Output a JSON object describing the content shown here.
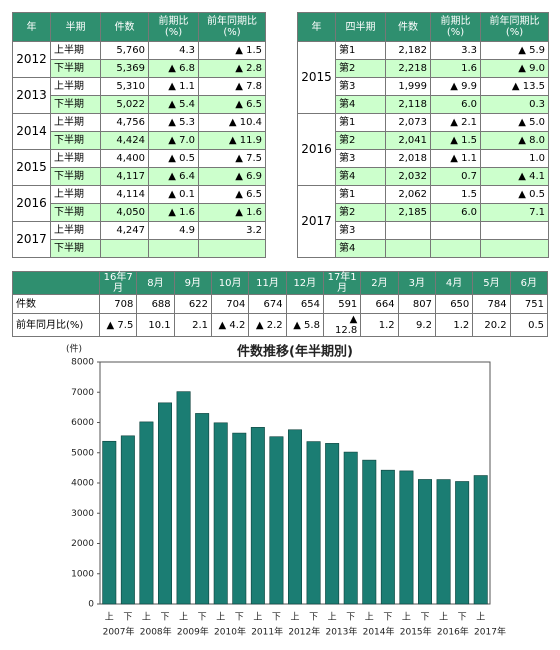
{
  "half_table": {
    "headers": [
      "年",
      "半期",
      "件数",
      "前期比\n(%)",
      "前年同期比\n(%)"
    ],
    "groups": [
      {
        "year": "2012",
        "rows": [
          [
            "上半期",
            "5,760",
            "4.3",
            "▲ 1.5"
          ],
          [
            "下半期",
            "5,369",
            "▲ 6.8",
            "▲ 2.8"
          ]
        ]
      },
      {
        "year": "2013",
        "rows": [
          [
            "上半期",
            "5,310",
            "▲ 1.1",
            "▲ 7.8"
          ],
          [
            "下半期",
            "5,022",
            "▲ 5.4",
            "▲ 6.5"
          ]
        ]
      },
      {
        "year": "2014",
        "rows": [
          [
            "上半期",
            "4,756",
            "▲ 5.3",
            "▲ 10.4"
          ],
          [
            "下半期",
            "4,424",
            "▲ 7.0",
            "▲ 11.9"
          ]
        ]
      },
      {
        "year": "2015",
        "rows": [
          [
            "上半期",
            "4,400",
            "▲ 0.5",
            "▲ 7.5"
          ],
          [
            "下半期",
            "4,117",
            "▲ 6.4",
            "▲ 6.9"
          ]
        ]
      },
      {
        "year": "2016",
        "rows": [
          [
            "上半期",
            "4,114",
            "▲ 0.1",
            "▲ 6.5"
          ],
          [
            "下半期",
            "4,050",
            "▲ 1.6",
            "▲ 1.6"
          ]
        ]
      },
      {
        "year": "2017",
        "rows": [
          [
            "上半期",
            "4,247",
            "4.9",
            "3.2"
          ],
          [
            "下半期"
          ]
        ]
      }
    ]
  },
  "quarter_table": {
    "headers": [
      "年",
      "四半期",
      "件数",
      "前期比\n(%)",
      "前年同期比\n(%)"
    ],
    "groups": [
      {
        "year": "2015",
        "rows": [
          [
            "第1",
            "2,182",
            "3.3",
            "▲ 5.9"
          ],
          [
            "第2",
            "2,218",
            "1.6",
            "▲ 9.0"
          ],
          [
            "第3",
            "1,999",
            "▲ 9.9",
            "▲ 13.5"
          ],
          [
            "第4",
            "2,118",
            "6.0",
            "0.3"
          ]
        ]
      },
      {
        "year": "2016",
        "rows": [
          [
            "第1",
            "2,073",
            "▲ 2.1",
            "▲ 5.0"
          ],
          [
            "第2",
            "2,041",
            "▲ 1.5",
            "▲ 8.0"
          ],
          [
            "第3",
            "2,018",
            "▲ 1.1",
            "1.0"
          ],
          [
            "第4",
            "2,032",
            "0.7",
            "▲ 4.1"
          ]
        ]
      },
      {
        "year": "2017",
        "rows": [
          [
            "第1",
            "2,062",
            "1.5",
            "▲ 0.5"
          ],
          [
            "第2",
            "2,185",
            "6.0",
            "7.1"
          ],
          [
            "第3"
          ],
          [
            "第4"
          ]
        ]
      }
    ]
  },
  "monthly_table": {
    "headers": [
      "16年7月",
      "8月",
      "9月",
      "10月",
      "11月",
      "12月",
      "17年1月",
      "2月",
      "3月",
      "4月",
      "5月",
      "6月"
    ],
    "rows": [
      {
        "label": "件数",
        "values": [
          "708",
          "688",
          "622",
          "704",
          "674",
          "654",
          "591",
          "664",
          "807",
          "650",
          "784",
          "751"
        ]
      },
      {
        "label": "前年同月比(%)",
        "values": [
          "▲ 7.5",
          "10.1",
          "2.1",
          "▲ 4.2",
          "▲ 2.2",
          "▲ 5.8",
          "▲ 12.8",
          "1.2",
          "9.2",
          "1.2",
          "20.2",
          "0.5"
        ]
      }
    ]
  },
  "chart_data": {
    "type": "bar",
    "title": "件数推移(年半期別)",
    "y_label": "(件)",
    "categories": [
      "上",
      "下",
      "上",
      "下",
      "上",
      "下",
      "上",
      "下",
      "上",
      "下",
      "上",
      "下",
      "上",
      "下",
      "上",
      "下",
      "上",
      "下",
      "上",
      "下",
      "上"
    ],
    "x_groups": [
      "2007年",
      "2008年",
      "2009年",
      "2010年",
      "2011年",
      "2012年",
      "2013年",
      "2014年",
      "2015年",
      "2016年",
      "2017年"
    ],
    "values": [
      5380,
      5560,
      6020,
      6650,
      7020,
      6300,
      5990,
      5650,
      5840,
      5530,
      5760,
      5369,
      5310,
      5022,
      4756,
      4424,
      4400,
      4117,
      4114,
      4050,
      4247
    ],
    "color": "#1b7d73",
    "ylim": [
      0,
      8000
    ],
    "yticks": [
      0,
      1000,
      2000,
      3000,
      4000,
      5000,
      6000,
      7000,
      8000
    ],
    "grid": false
  }
}
